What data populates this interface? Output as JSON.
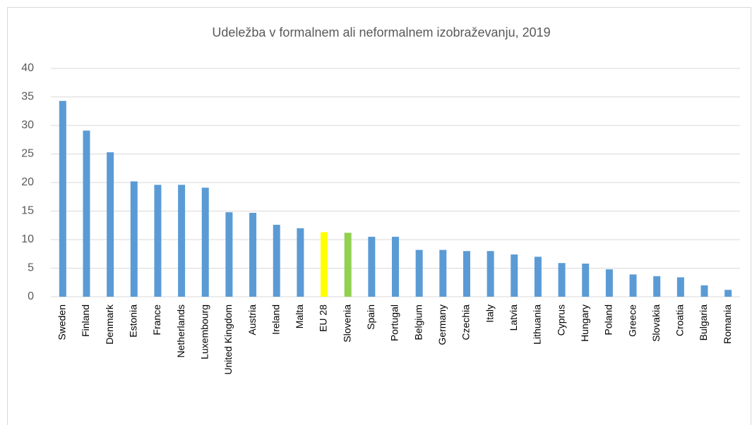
{
  "chart_data": {
    "type": "bar",
    "title": "Udeležba v formalnem ali neformalnem izobraževanju, 2019",
    "categories": [
      "Sweden",
      "Finland",
      "Denmark",
      "Estonia",
      "France",
      "Netherlands",
      "Luxembourg",
      "United Kingdom",
      "Austria",
      "Ireland",
      "Malta",
      "EU 28",
      "Slovenia",
      "Spain",
      "Portugal",
      "Belgium",
      "Germany",
      "Czechia",
      "Italy",
      "Latvia",
      "Lithuania",
      "Cyprus",
      "Hungary",
      "Poland",
      "Greece",
      "Slovakia",
      "Croatia",
      "Bulgaria",
      "Romania"
    ],
    "values": [
      34.3,
      29.1,
      25.3,
      20.2,
      19.6,
      19.6,
      19.1,
      14.8,
      14.7,
      12.6,
      12.0,
      11.3,
      11.2,
      10.5,
      10.5,
      8.2,
      8.2,
      8.0,
      8.0,
      7.4,
      7.0,
      5.9,
      5.8,
      4.8,
      3.9,
      3.6,
      3.4,
      2.0,
      1.2
    ],
    "colors": [
      "#5b9bd5",
      "#5b9bd5",
      "#5b9bd5",
      "#5b9bd5",
      "#5b9bd5",
      "#5b9bd5",
      "#5b9bd5",
      "#5b9bd5",
      "#5b9bd5",
      "#5b9bd5",
      "#5b9bd5",
      "#ffff00",
      "#92d050",
      "#5b9bd5",
      "#5b9bd5",
      "#5b9bd5",
      "#5b9bd5",
      "#5b9bd5",
      "#5b9bd5",
      "#5b9bd5",
      "#5b9bd5",
      "#5b9bd5",
      "#5b9bd5",
      "#5b9bd5",
      "#5b9bd5",
      "#5b9bd5",
      "#5b9bd5",
      "#5b9bd5",
      "#5b9bd5"
    ],
    "ylim": [
      0,
      40
    ],
    "yticks": [
      0,
      5,
      10,
      15,
      20,
      25,
      30,
      35,
      40
    ],
    "grid": true
  }
}
